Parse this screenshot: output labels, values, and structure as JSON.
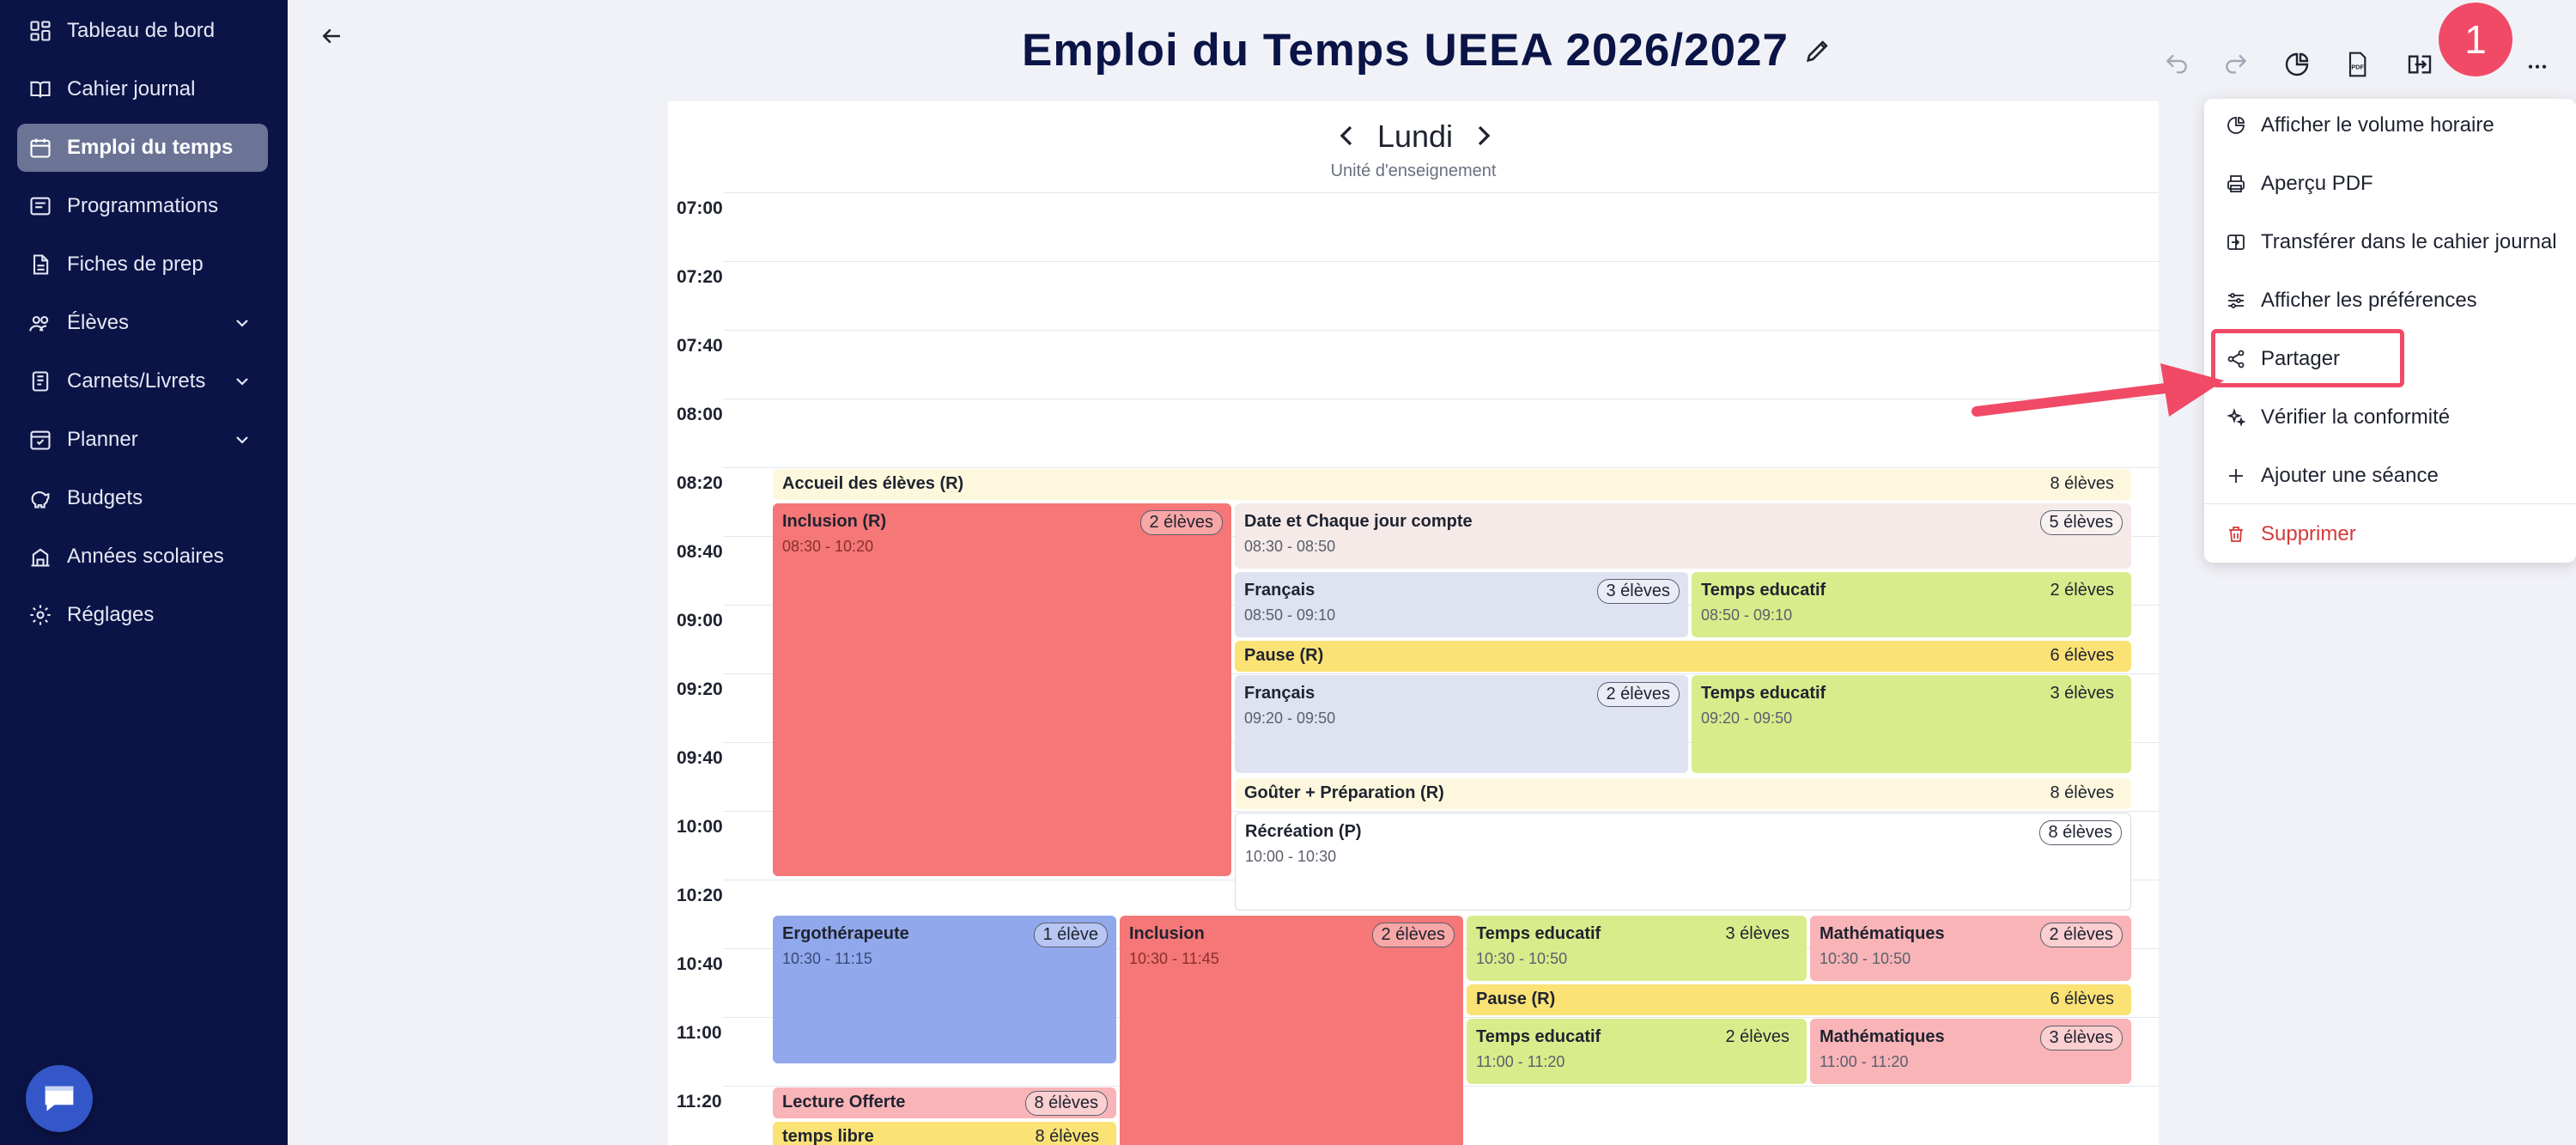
{
  "sidebar": {
    "items": [
      {
        "label": "Tableau de bord",
        "icon": "dashboard-icon"
      },
      {
        "label": "Cahier journal",
        "icon": "book-icon"
      },
      {
        "label": "Emploi du temps",
        "icon": "calendar-icon",
        "active": true
      },
      {
        "label": "Programmations",
        "icon": "program-icon"
      },
      {
        "label": "Fiches de prep",
        "icon": "document-icon"
      },
      {
        "label": "Élèves",
        "icon": "users-icon",
        "expandable": true
      },
      {
        "label": "Carnets/Livrets",
        "icon": "notebook-icon",
        "expandable": true
      },
      {
        "label": "Planner",
        "icon": "planner-icon",
        "expandable": true
      },
      {
        "label": "Budgets",
        "icon": "piggy-bank-icon"
      },
      {
        "label": "Années scolaires",
        "icon": "school-icon"
      },
      {
        "label": "Réglages",
        "icon": "gear-icon"
      }
    ]
  },
  "header": {
    "title": "Emploi du Temps UEEA 2026/2027",
    "step_badge": "1"
  },
  "calendar": {
    "day": "Lundi",
    "subtitle": "Unité d'enseignement",
    "times": [
      "07:00",
      "07:20",
      "07:40",
      "08:00",
      "08:20",
      "08:40",
      "09:00",
      "09:20",
      "09:40",
      "10:00",
      "10:20",
      "10:40",
      "11:00",
      "11:20"
    ],
    "events": [
      {
        "title": "Accueil des élèves (R)",
        "time": "",
        "count": "8 élèves"
      },
      {
        "title": "Inclusion (R)",
        "time": "08:30 - 10:20",
        "count": "2 élèves"
      },
      {
        "title": "Date et Chaque jour compte",
        "time": "08:30 - 08:50",
        "count": "5 élèves"
      },
      {
        "title": "Français",
        "time": "08:50 - 09:10",
        "count": "3 élèves"
      },
      {
        "title": "Temps educatif",
        "time": "08:50 - 09:10",
        "count": "2 élèves"
      },
      {
        "title": "Pause (R)",
        "time": "",
        "count": "6 élèves"
      },
      {
        "title": "Français",
        "time": "09:20 - 09:50",
        "count": "2 élèves"
      },
      {
        "title": "Temps educatif",
        "time": "09:20 - 09:50",
        "count": "3 élèves"
      },
      {
        "title": "Goûter + Préparation (R)",
        "time": "",
        "count": "8 élèves"
      },
      {
        "title": "Récréation (P)",
        "time": "10:00 - 10:30",
        "count": "8 élèves"
      },
      {
        "title": "Ergothérapeute",
        "time": "10:30 - 11:15",
        "count": "1 élève"
      },
      {
        "title": "Inclusion",
        "time": "10:30 - 11:45",
        "count": "2 élèves"
      },
      {
        "title": "Temps educatif",
        "time": "10:30 - 10:50",
        "count": "3 élèves"
      },
      {
        "title": "Mathématiques",
        "time": "10:30 - 10:50",
        "count": "2 élèves"
      },
      {
        "title": "Pause (R)",
        "time": "",
        "count": "6 élèves"
      },
      {
        "title": "Temps educatif",
        "time": "11:00 - 11:20",
        "count": "2 élèves"
      },
      {
        "title": "Mathématiques",
        "time": "11:00 - 11:20",
        "count": "3 élèves"
      },
      {
        "title": "Lecture Offerte",
        "time": "",
        "count": "8 élèves"
      },
      {
        "title": "temps libre",
        "time": "",
        "count": "8 élèves"
      }
    ]
  },
  "menu": {
    "items": [
      {
        "label": "Afficher le volume horaire",
        "icon": "pie-chart-icon"
      },
      {
        "label": "Aperçu PDF",
        "icon": "printer-icon"
      },
      {
        "label": "Transférer dans le cahier journal",
        "icon": "transfer-icon"
      },
      {
        "label": "Afficher les préférences",
        "icon": "sliders-icon"
      },
      {
        "label": "Partager",
        "icon": "share-icon"
      },
      {
        "label": "Vérifier la conformité",
        "icon": "sparkles-icon"
      },
      {
        "label": "Ajouter une séance",
        "icon": "plus-icon"
      },
      {
        "label": "Supprimer",
        "icon": "trash-icon",
        "danger": true
      }
    ]
  },
  "colors": {
    "sidebar_bg": "#0b1446",
    "accent_red": "#f04a66",
    "inclusion": "#f57777",
    "francais": "#dfe3f1",
    "temps_educatif": "#d9ec8b",
    "pause": "#fbe275",
    "accueil": "#fdf8dd",
    "maths": "#f9b4b7",
    "ergo": "#91a8ec"
  }
}
